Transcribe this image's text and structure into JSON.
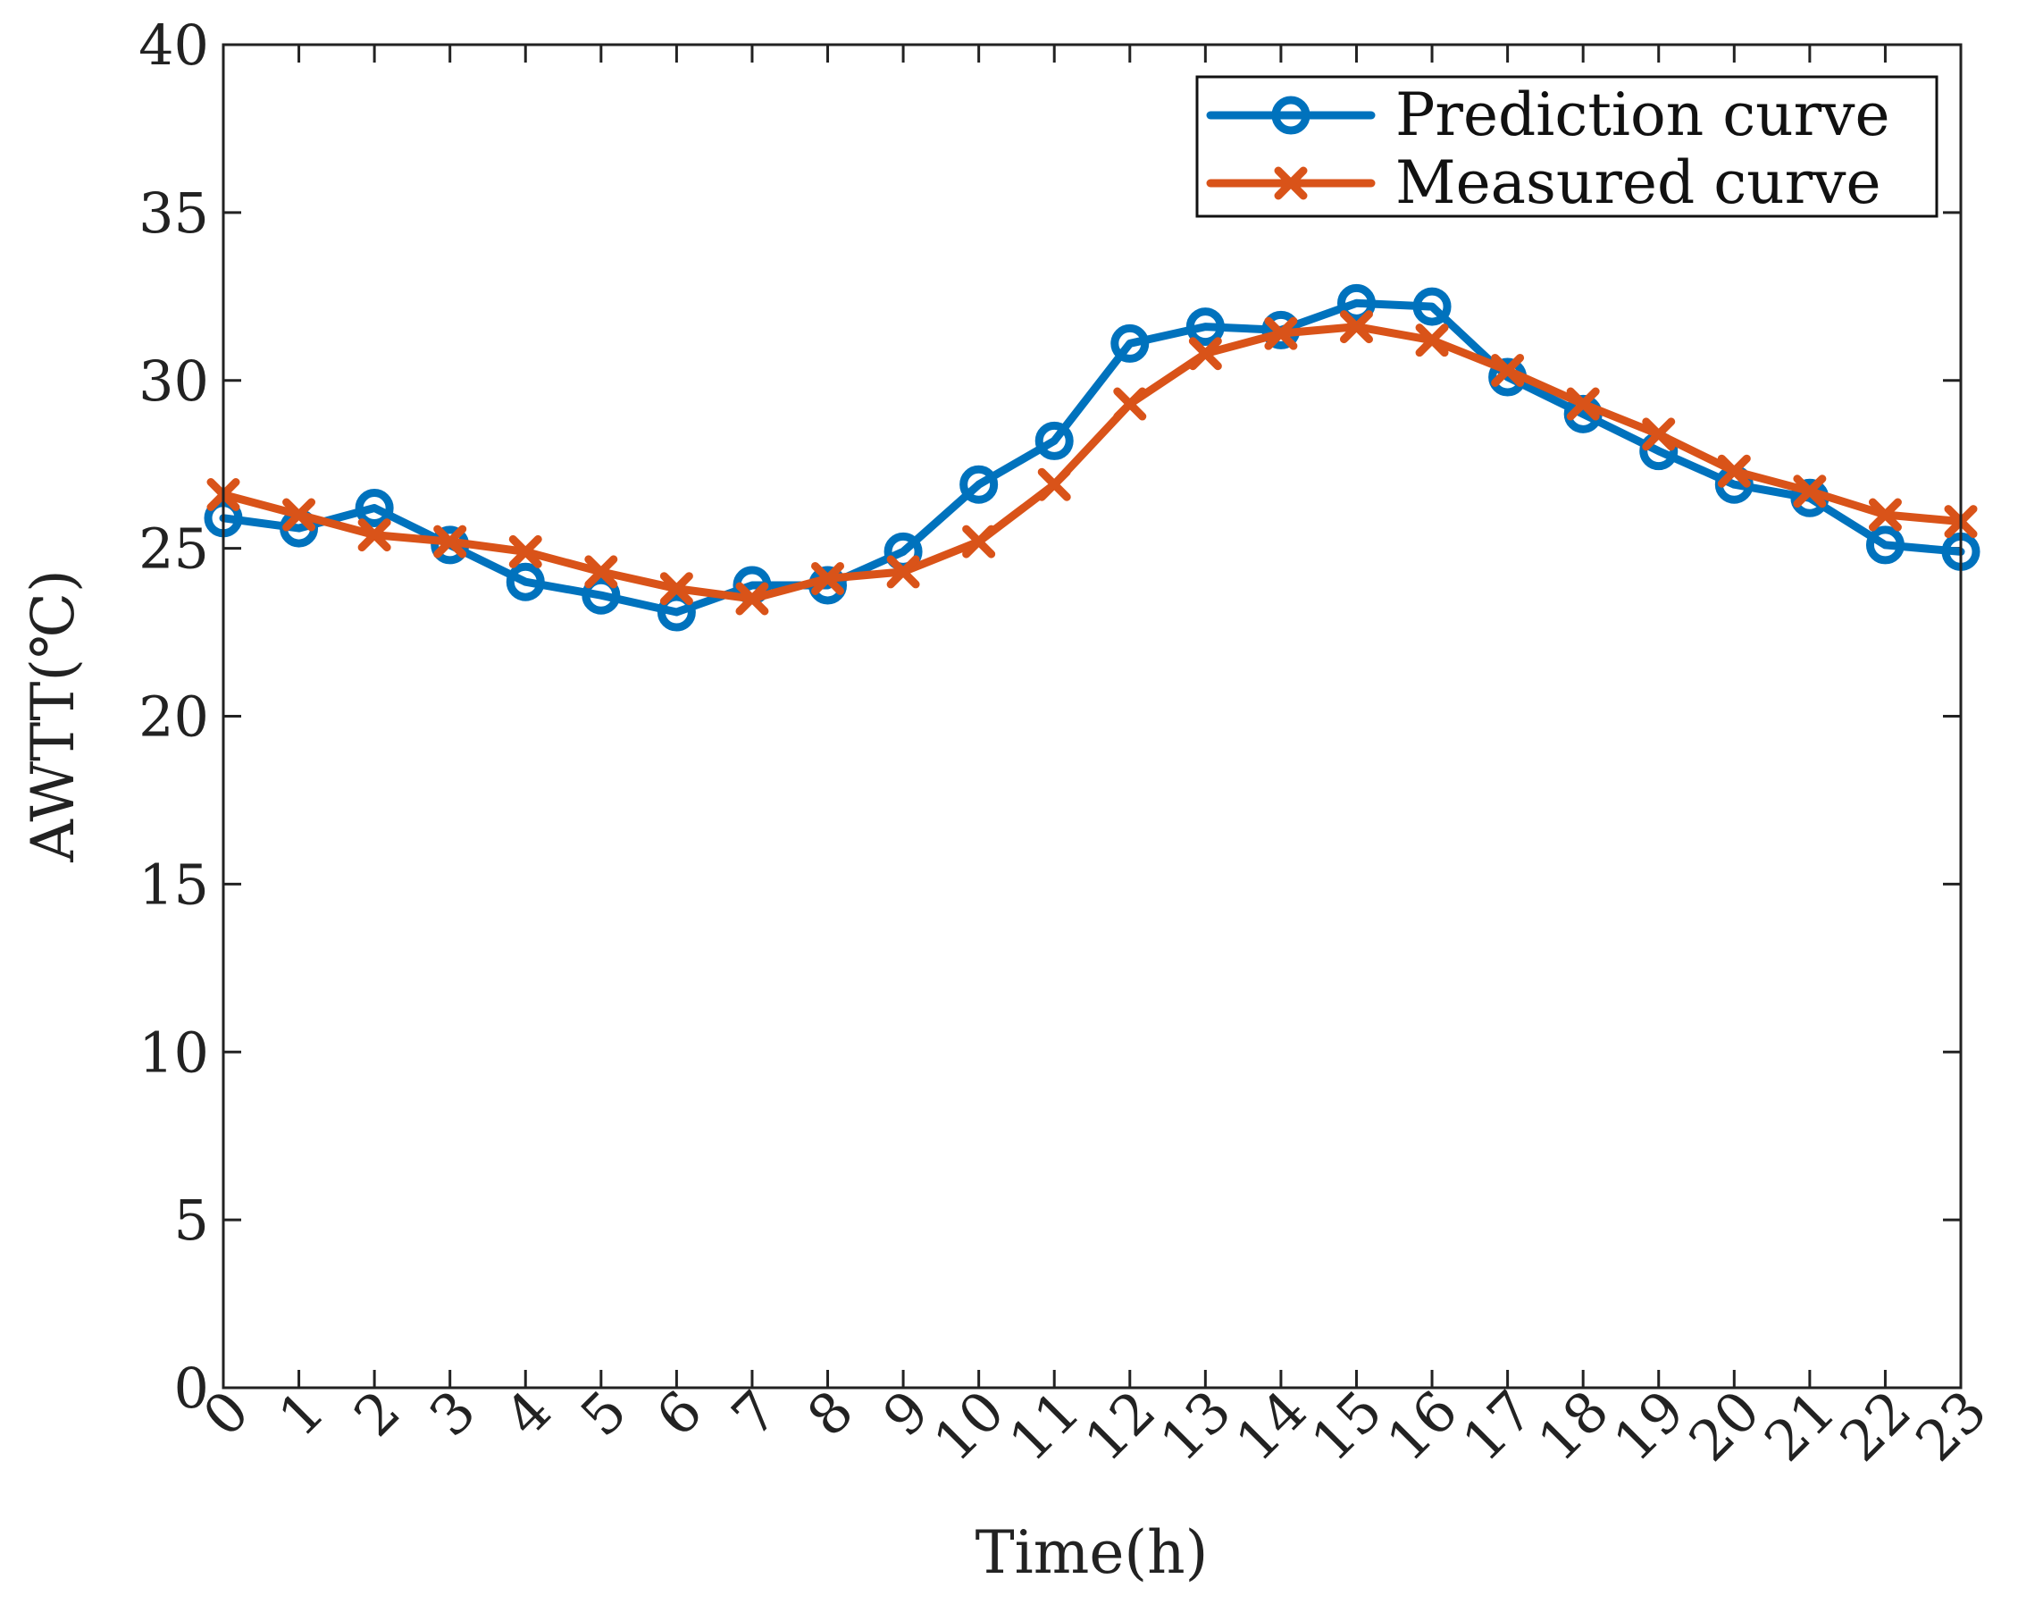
{
  "chart_data": {
    "type": "line",
    "title": "",
    "xlabel": "Time(h)",
    "ylabel": "AWTT(℃)",
    "x": [
      0,
      1,
      2,
      3,
      4,
      5,
      6,
      7,
      8,
      9,
      10,
      11,
      12,
      13,
      14,
      15,
      16,
      17,
      18,
      19,
      20,
      21,
      22,
      23
    ],
    "xticks": [
      "0",
      "1",
      "2",
      "3",
      "4",
      "5",
      "6",
      "7",
      "8",
      "9",
      "10",
      "11",
      "12",
      "13",
      "14",
      "15",
      "16",
      "17",
      "18",
      "19",
      "20",
      "21",
      "22",
      "23"
    ],
    "ylim": [
      0,
      40
    ],
    "yticks": [
      "0",
      "5",
      "10",
      "15",
      "20",
      "25",
      "30",
      "35",
      "40"
    ],
    "grid": false,
    "legend_position": "top-right",
    "series": [
      {
        "name": "Prediction curve",
        "color": "#0072BD",
        "marker": "circle",
        "values": [
          25.9,
          25.6,
          26.2,
          25.1,
          24.0,
          23.6,
          23.1,
          23.9,
          23.9,
          24.9,
          26.9,
          28.2,
          31.1,
          31.6,
          31.5,
          32.3,
          32.2,
          30.1,
          29.0,
          27.9,
          26.9,
          26.5,
          25.1,
          24.9
        ]
      },
      {
        "name": "Measured curve",
        "color": "#D95319",
        "marker": "x",
        "values": [
          26.6,
          26.0,
          25.4,
          25.2,
          24.9,
          24.3,
          23.8,
          23.5,
          24.1,
          24.3,
          25.2,
          26.9,
          29.3,
          30.8,
          31.4,
          31.6,
          31.2,
          30.3,
          29.3,
          28.4,
          27.3,
          26.7,
          26.0,
          25.8
        ]
      }
    ]
  }
}
